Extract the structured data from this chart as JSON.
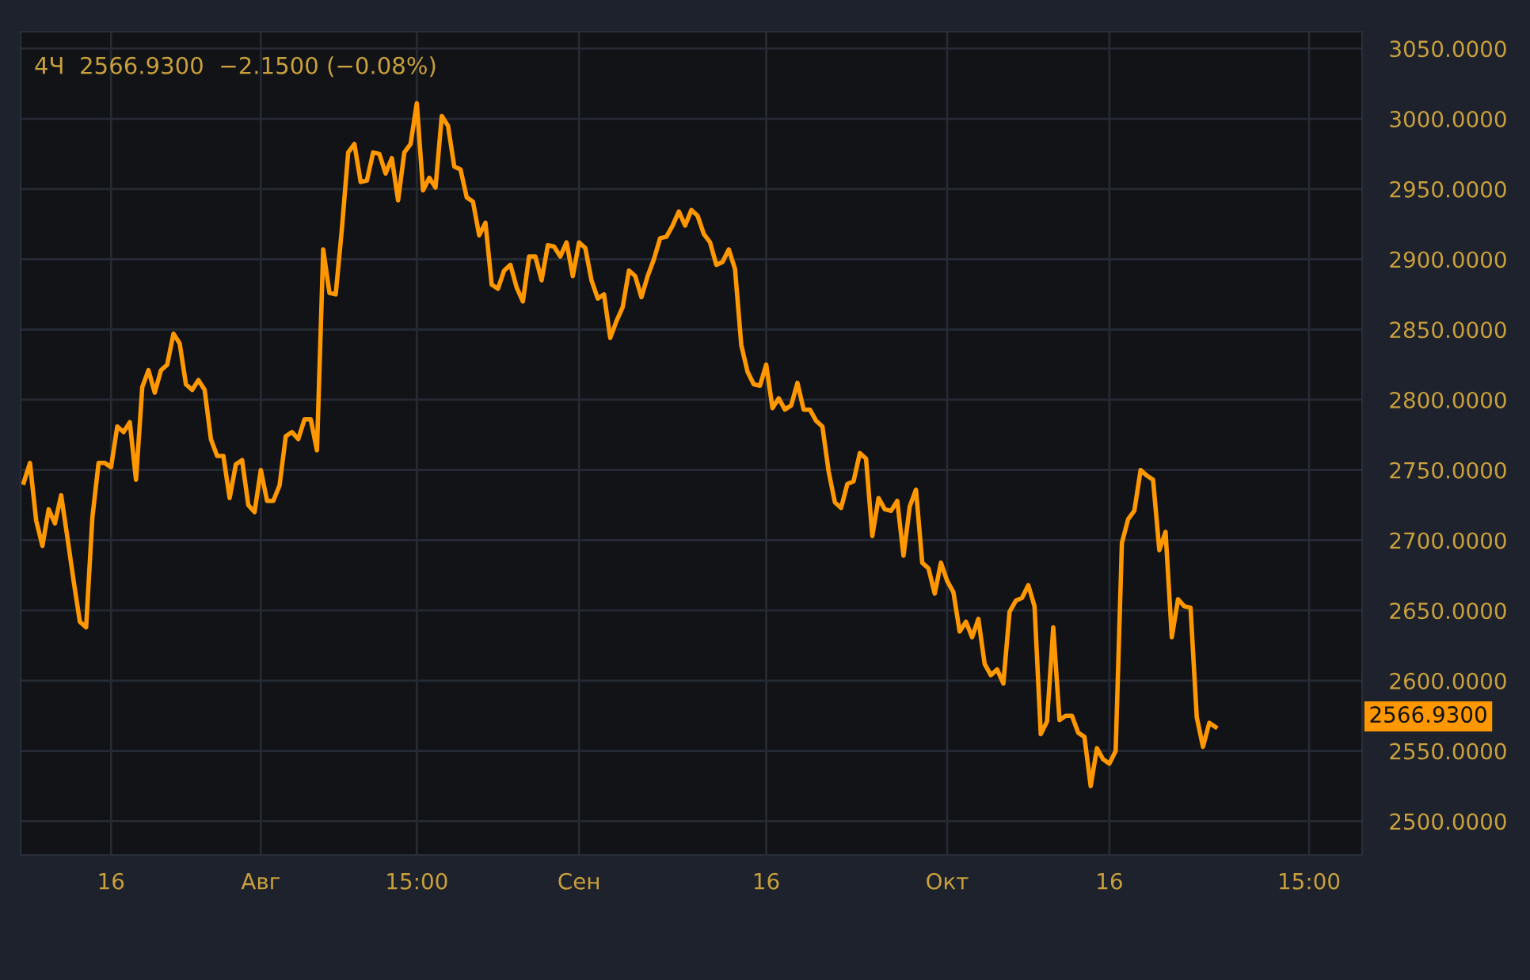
{
  "chart_data": {
    "type": "line",
    "title": "4Ч  2566.9300  −2.1500 (−0.08%)",
    "categories": [
      null,
      null,
      null,
      null,
      null,
      null,
      null,
      null,
      null,
      null,
      null,
      null,
      null,
      null,
      "16",
      null,
      null,
      null,
      null,
      null,
      null,
      null,
      null,
      null,
      null,
      null,
      null,
      null,
      null,
      null,
      null,
      null,
      null,
      null,
      null,
      null,
      null,
      null,
      "Авг",
      null,
      null,
      null,
      null,
      null,
      null,
      null,
      null,
      null,
      null,
      null,
      null,
      null,
      null,
      null,
      null,
      null,
      null,
      null,
      null,
      null,
      null,
      null,
      null,
      "15:00",
      null,
      null,
      null,
      null,
      null,
      null,
      null,
      null,
      null,
      null,
      null,
      null,
      null,
      null,
      null,
      null,
      null,
      null,
      null,
      null,
      null,
      null,
      null,
      null,
      null,
      "Сен",
      null,
      null,
      null,
      null,
      null,
      null,
      null,
      null,
      null,
      null,
      null,
      null,
      null,
      null,
      null,
      null,
      null,
      null,
      null,
      null,
      null,
      null,
      null,
      null,
      null,
      null,
      null,
      null,
      null,
      "16",
      null,
      null,
      null,
      null,
      null,
      null,
      null,
      null,
      null,
      null,
      null,
      null,
      null,
      null,
      null,
      null,
      null,
      null,
      null,
      null,
      null,
      null,
      null,
      null,
      null,
      null,
      null,
      null,
      "Окт",
      null,
      null,
      null,
      null,
      null,
      null,
      null,
      null,
      null,
      null,
      null,
      null,
      null,
      null,
      null,
      null,
      null,
      null,
      null,
      null,
      null,
      null,
      null,
      null,
      null,
      "16",
      null,
      null,
      null,
      null,
      null,
      null,
      null,
      null,
      null,
      null,
      null,
      null,
      null,
      null,
      null,
      null,
      null,
      null,
      null,
      null,
      null,
      null,
      null,
      null,
      null,
      null,
      null,
      null,
      null,
      null,
      null,
      "15:00",
      null,
      null,
      null,
      null,
      null,
      null,
      null,
      null
    ],
    "series": [
      {
        "color": "#ff9800",
        "values": [
          2741,
          2755,
          2714,
          2696,
          2722,
          2712,
          2732,
          2702,
          2671,
          2642,
          2638,
          2716,
          2755,
          2755,
          2752,
          2781,
          2777,
          2784,
          2743,
          2809,
          2821,
          2805,
          2821,
          2825,
          2847,
          2840,
          2811,
          2807,
          2814,
          2807,
          2772,
          2760,
          2760,
          2730,
          2754,
          2757,
          2725,
          2720,
          2750,
          2728,
          2728,
          2739,
          2774,
          2777,
          2772,
          2786,
          2786,
          2764,
          2907,
          2876,
          2875,
          2922,
          2976,
          2982,
          2955,
          2956,
          2976,
          2975,
          2961,
          2972,
          2942,
          2976,
          2982,
          3011,
          2949,
          2958,
          2951,
          3002,
          2995,
          2966,
          2964,
          2944,
          2941,
          2917,
          2926,
          2882,
          2879,
          2892,
          2896,
          2880,
          2870,
          2902,
          2902,
          2885,
          2910,
          2909,
          2902,
          2912,
          2888,
          2912,
          2908,
          2885,
          2872,
          2875,
          2844,
          2856,
          2866,
          2892,
          2888,
          2873,
          2888,
          2900,
          2915,
          2916,
          2924,
          2934,
          2924,
          2935,
          2931,
          2918,
          2912,
          2896,
          2898,
          2907,
          2893,
          2839,
          2820,
          2811,
          2810,
          2825,
          2794,
          2801,
          2793,
          2796,
          2812,
          2793,
          2793,
          2785,
          2781,
          2749,
          2727,
          2723,
          2740,
          2742,
          2762,
          2758,
          2703,
          2730,
          2722,
          2721,
          2728,
          2689,
          2724,
          2736,
          2684,
          2680,
          2662,
          2684,
          2671,
          2663,
          2635,
          2642,
          2631,
          2644,
          2612,
          2604,
          2608,
          2598,
          2649,
          2657,
          2659,
          2668,
          2653,
          2562,
          2571,
          2638,
          2572,
          2575,
          2575,
          2563,
          2560,
          2525,
          2552,
          2544,
          2541,
          2550,
          2698,
          2715,
          2721,
          2750,
          2746,
          2743,
          2693,
          2706,
          2631,
          2658,
          2653,
          2652,
          2574,
          2553,
          2570,
          2567,
          null,
          null,
          null,
          null,
          null,
          null,
          null,
          null,
          null,
          null,
          null,
          null,
          null,
          null,
          null,
          null,
          null,
          null,
          null,
          null,
          null,
          null,
          null
        ]
      }
    ],
    "ylim": [
      2476,
      3062
    ],
    "yticks": [
      {
        "value": 2500,
        "label": "2500.0000"
      },
      {
        "value": 2550,
        "label": "2550.0000"
      },
      {
        "value": 2600,
        "label": "2600.0000"
      },
      {
        "value": 2650,
        "label": "2650.0000"
      },
      {
        "value": 2700,
        "label": "2700.0000"
      },
      {
        "value": 2750,
        "label": "2750.0000"
      },
      {
        "value": 2800,
        "label": "2800.0000"
      },
      {
        "value": 2850,
        "label": "2850.0000"
      },
      {
        "value": 2900,
        "label": "2900.0000"
      },
      {
        "value": 2950,
        "label": "2950.0000"
      },
      {
        "value": 3000,
        "label": "3000.0000"
      },
      {
        "value": 3050,
        "label": "3050.0000"
      }
    ],
    "grid": true,
    "annotations": [
      "2566.9300"
    ]
  }
}
